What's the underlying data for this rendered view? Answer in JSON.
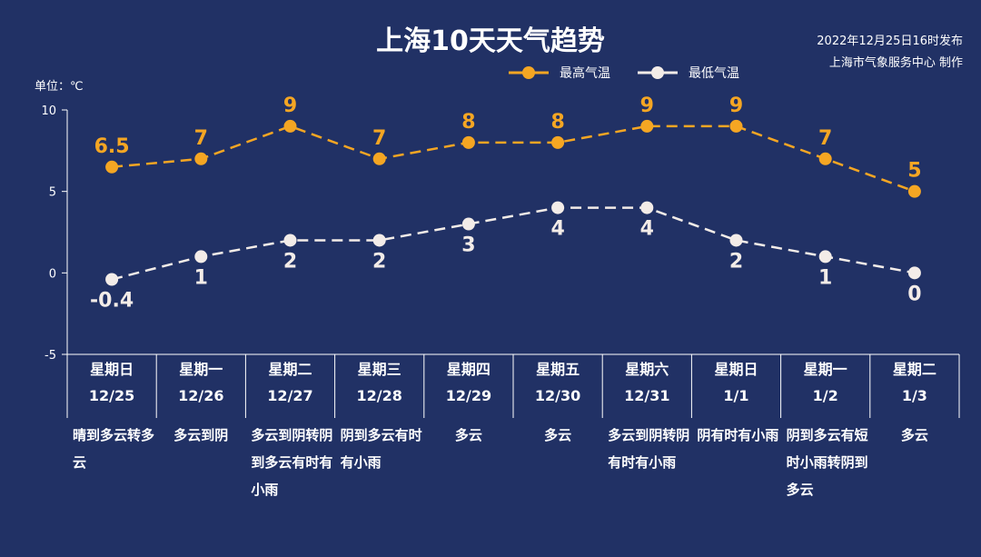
{
  "chart_data": {
    "type": "line",
    "title": "上海10天天气趋势",
    "ylabel": "单位：℃",
    "ylim": [
      -5,
      10
    ],
    "yticks": [
      -5,
      0,
      5,
      10
    ],
    "categories": [
      {
        "weekday": "星期日",
        "date": "12/25",
        "weather": "晴到多云转多云"
      },
      {
        "weekday": "星期一",
        "date": "12/26",
        "weather": "多云到阴"
      },
      {
        "weekday": "星期二",
        "date": "12/27",
        "weather": "多云到阴转阴到多云有时有小雨"
      },
      {
        "weekday": "星期三",
        "date": "12/28",
        "weather": "阴到多云有时有小雨"
      },
      {
        "weekday": "星期四",
        "date": "12/29",
        "weather": "多云"
      },
      {
        "weekday": "星期五",
        "date": "12/30",
        "weather": "多云"
      },
      {
        "weekday": "星期六",
        "date": "12/31",
        "weather": "多云到阴转阴有时有小雨"
      },
      {
        "weekday": "星期日",
        "date": "1/1",
        "weather": "阴有时有小雨"
      },
      {
        "weekday": "星期一",
        "date": "1/2",
        "weather": "阴到多云有短时小雨转阴到多云"
      },
      {
        "weekday": "星期二",
        "date": "1/3",
        "weather": "多云"
      }
    ],
    "series": [
      {
        "name": "最高气温",
        "color": "#f5a623",
        "values": [
          6.5,
          7,
          9,
          7,
          8,
          8,
          9,
          9,
          7,
          5
        ],
        "labels": [
          "6.5",
          "7",
          "9",
          "7",
          "8",
          "8",
          "9",
          "9",
          "7",
          "5"
        ]
      },
      {
        "name": "最低气温",
        "color": "#f3ece8",
        "values": [
          -0.4,
          1,
          2,
          2,
          3,
          4,
          4,
          2,
          1,
          0
        ],
        "labels": [
          "-0.4",
          "1",
          "2",
          "2",
          "3",
          "4",
          "4",
          "2",
          "1",
          "0"
        ]
      }
    ],
    "legend": "top-center",
    "grid": false
  },
  "publish": {
    "line1": "2022年12月25日16时发布",
    "line2": "上海市气象服务中心 制作"
  }
}
